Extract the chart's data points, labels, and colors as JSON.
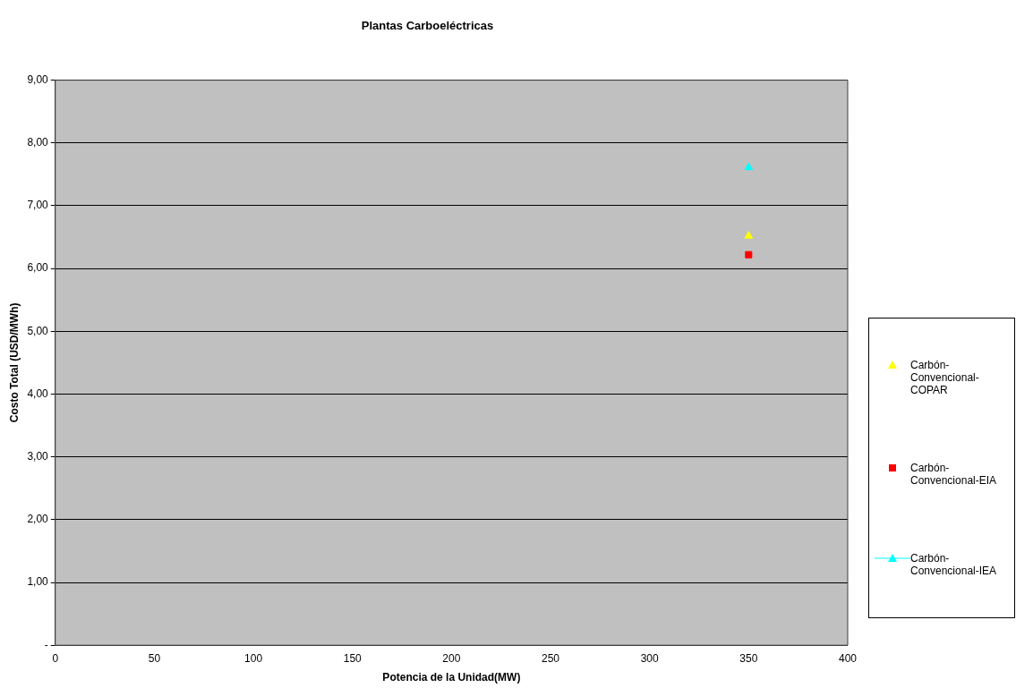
{
  "chart_data": {
    "type": "scatter",
    "title": "Plantas Carboeléctricas",
    "xlabel": "Potencia de la Unidad(MW)",
    "ylabel": "Costo Total (USD/MWh)",
    "xlim": [
      0,
      400
    ],
    "xticks": [
      0,
      50,
      100,
      150,
      200,
      250,
      300,
      350,
      400
    ],
    "ylim": [
      0,
      9
    ],
    "yticks": [
      {
        "value": 0,
        "label": "-"
      },
      {
        "value": 1,
        "label": "1,00"
      },
      {
        "value": 2,
        "label": "2,00"
      },
      {
        "value": 3,
        "label": "3,00"
      },
      {
        "value": 4,
        "label": "4,00"
      },
      {
        "value": 5,
        "label": "5,00"
      },
      {
        "value": 6,
        "label": "6,00"
      },
      {
        "value": 7,
        "label": "7,00"
      },
      {
        "value": 8,
        "label": "8,00"
      },
      {
        "value": 9,
        "label": "9,00"
      }
    ],
    "grid": "y",
    "legend": "right",
    "x": [
      350
    ],
    "series": [
      {
        "name": "Carbón-Convencional-COPAR",
        "color": "#ffff00",
        "marker": "triangle",
        "values": [
          6.52
        ]
      },
      {
        "name": "Carbón-Convencional-EIA",
        "color": "#ff0000",
        "marker": "square",
        "values": [
          6.22
        ]
      },
      {
        "name": "Carbón-Convencional-IEA",
        "color": "#00ffff",
        "marker": "triangle",
        "line_style": "solid",
        "values": [
          7.61
        ]
      }
    ]
  }
}
